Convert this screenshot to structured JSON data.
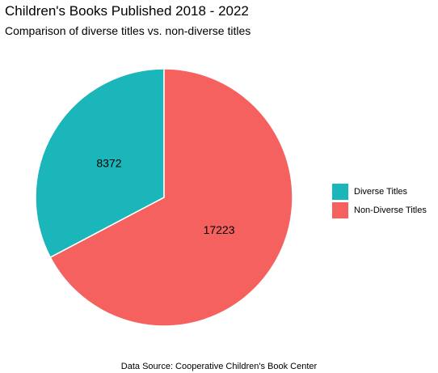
{
  "chart_data": {
    "type": "pie",
    "title": "Children's Books Published 2018 - 2022",
    "subtitle": "Comparison of diverse titles vs. non-diverse titles",
    "caption": "Data Source: Cooperative Children's Book Center",
    "categories": [
      "Diverse Titles",
      "Non-Diverse Titles"
    ],
    "values": [
      8372,
      17223
    ],
    "data_labels": [
      "8372",
      "17223"
    ],
    "colors": [
      "#1BB6B9",
      "#F4615E"
    ],
    "slice_order": "diverse counter-clockwise from 12 o'clock, non-diverse clockwise",
    "legend_placement": "right",
    "grid": false
  }
}
